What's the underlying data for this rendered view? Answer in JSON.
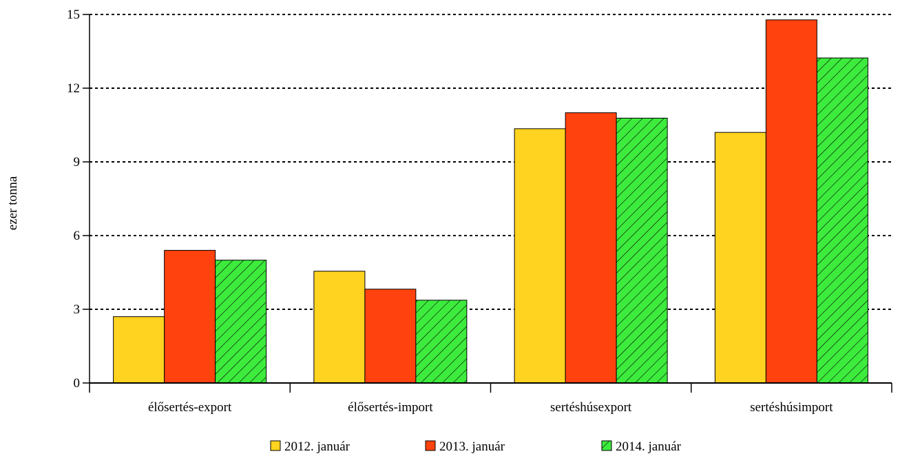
{
  "chart_data": {
    "type": "bar",
    "title": "",
    "xlabel": "",
    "ylabel": "ezer tonna",
    "ylim": [
      0,
      15
    ],
    "yticks": [
      0,
      3,
      6,
      9,
      12,
      15
    ],
    "grid": true,
    "legend_position": "bottom",
    "categories": [
      "élősertés-export",
      "élősertés-import",
      "sertéshúsexport",
      "sertéshúsimport"
    ],
    "series": [
      {
        "name": "2012. január",
        "color": "#FFD320",
        "pattern": "solid",
        "values": [
          2.7,
          4.55,
          10.35,
          10.2
        ]
      },
      {
        "name": "2013. január",
        "color": "#FF420E",
        "pattern": "solid",
        "values": [
          5.4,
          3.82,
          11.0,
          14.78
        ]
      },
      {
        "name": "2014. január",
        "color": "#3DEB3D",
        "pattern": "hatched",
        "values": [
          5.0,
          3.37,
          10.78,
          13.23
        ]
      }
    ]
  }
}
